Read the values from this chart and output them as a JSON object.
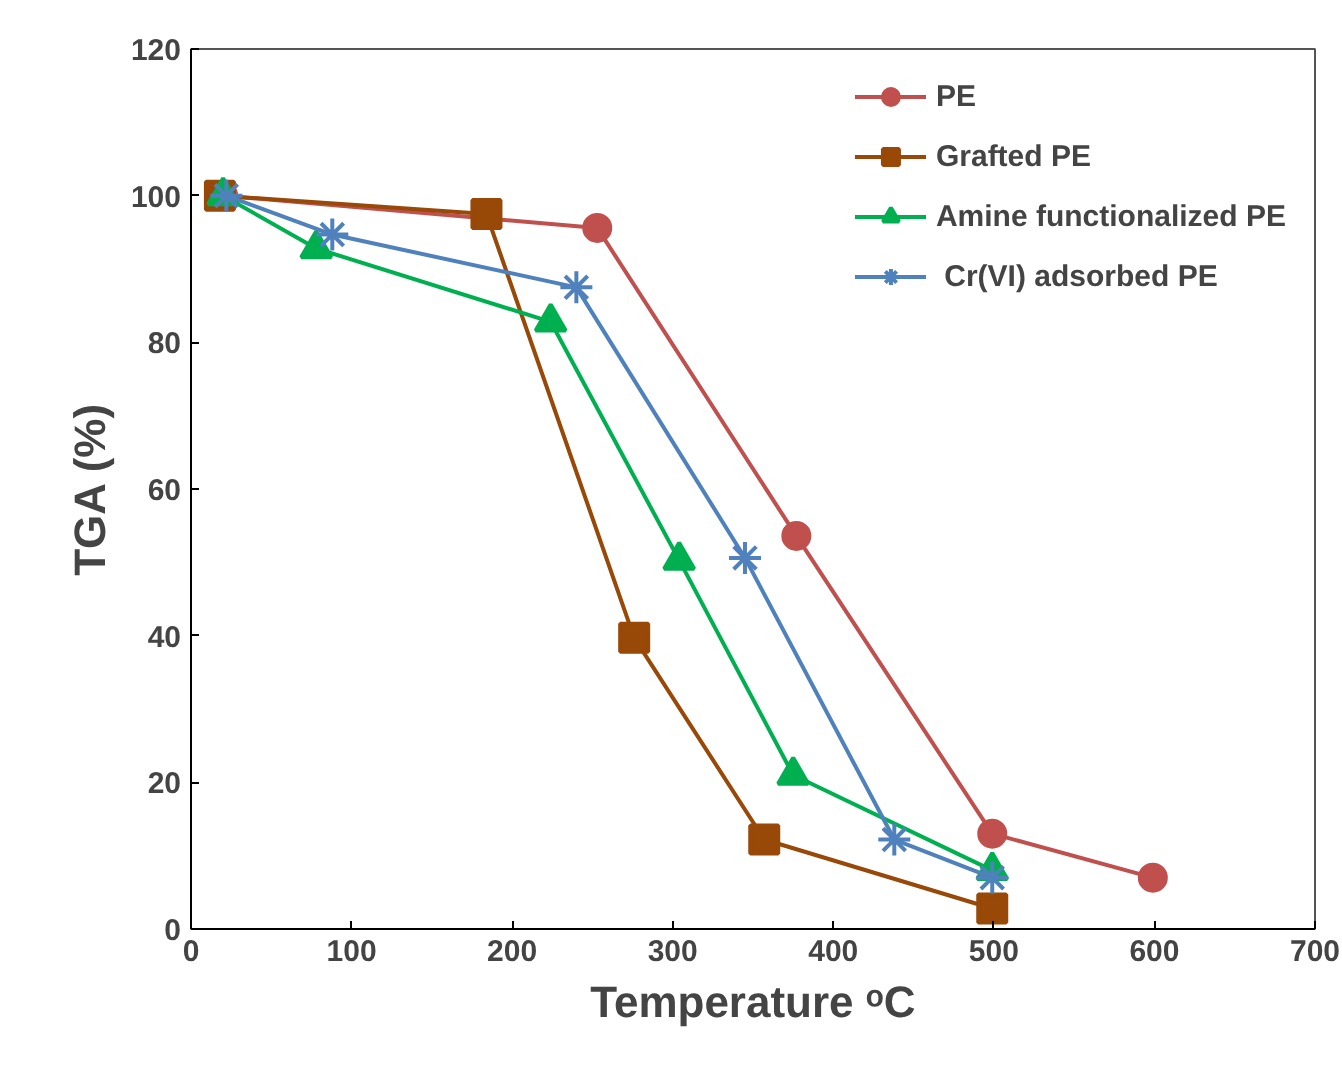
{
  "chart_data": {
    "type": "line",
    "xlabel": "Temperature ᵒC",
    "ylabel": "TGA (%)",
    "xlim": [
      0,
      700
    ],
    "xticks": [
      0,
      100,
      200,
      300,
      400,
      500,
      600,
      700
    ],
    "ylim": [
      0,
      120
    ],
    "yticks": [
      0,
      20,
      40,
      60,
      80,
      100,
      120
    ],
    "grid": false,
    "legend": "top right",
    "line_style": "solid",
    "series": [
      {
        "name": "PE",
        "color": "#c0504d",
        "marker": "circle",
        "x": [
          20,
          253,
          377,
          499,
          599
        ],
        "values": [
          100,
          95.6,
          53.6,
          13,
          7
        ]
      },
      {
        "name": "Grafted PE",
        "color": "#984807",
        "marker": "square",
        "x": [
          18,
          184,
          276,
          357,
          499
        ],
        "values": [
          100,
          97.5,
          39.7,
          12.2,
          2.8
        ]
      },
      {
        "name": "Amine functionalized PE",
        "color": "#00b050",
        "marker": "triangle",
        "x": [
          20,
          78,
          224,
          304,
          375,
          499
        ],
        "values": [
          100,
          92.8,
          82.8,
          50.3,
          21,
          8
        ]
      },
      {
        "name": " Cr(VI) adsorbed PE",
        "color": "#4f81bd",
        "marker": "cross",
        "x": [
          22,
          88,
          240,
          345,
          438,
          499
        ],
        "values": [
          100,
          94.7,
          87.5,
          50.6,
          12.2,
          7
        ]
      }
    ]
  }
}
